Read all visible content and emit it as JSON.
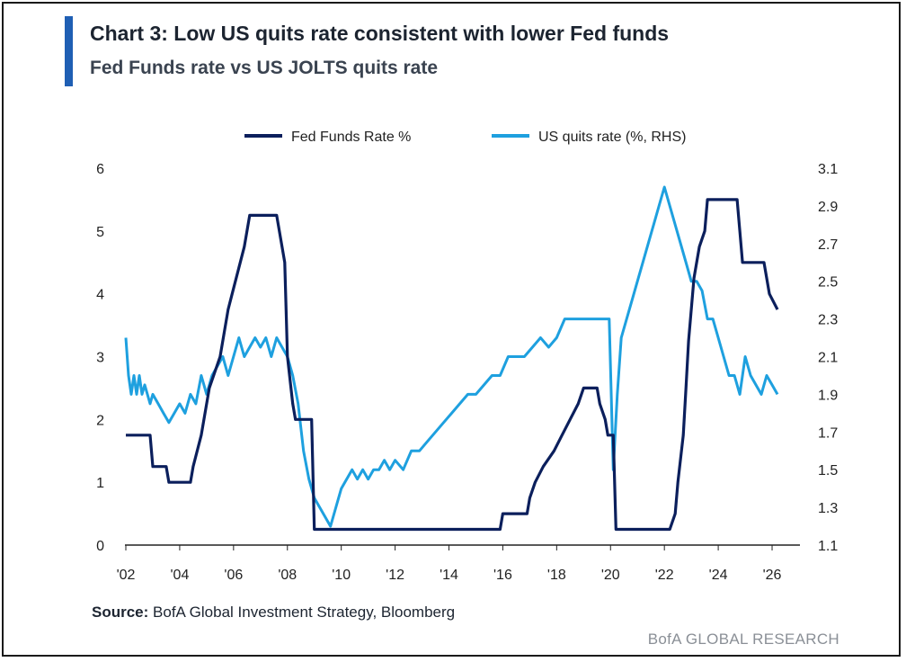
{
  "header": {
    "title": "Chart 3: Low US quits rate consistent with lower Fed funds",
    "subtitle": "Fed Funds rate vs US JOLTS quits rate"
  },
  "footer": {
    "source_label": "Source:",
    "source_text": " BofA Global Investment Strategy, Bloomberg",
    "watermark": "BofA GLOBAL RESEARCH"
  },
  "colors": {
    "fed": "#0b1f5c",
    "quits": "#1ea0df",
    "accent": "#1f5fb4",
    "axis": "#222222"
  },
  "chart_data": {
    "type": "line",
    "title": "",
    "xlabel": "",
    "ylabel": "",
    "x_ticks": [
      "'02",
      "'04",
      "'06",
      "'08",
      "'10",
      "'12",
      "'14",
      "'16",
      "'18",
      "'20",
      "'22",
      "'24",
      "'26"
    ],
    "x_tick_values": [
      2002,
      2004,
      2006,
      2008,
      2010,
      2012,
      2014,
      2016,
      2018,
      2020,
      2022,
      2024,
      2026
    ],
    "xlim": [
      2002,
      2026.5
    ],
    "ylim_left": [
      0,
      6
    ],
    "y_ticks_left": [
      "0",
      "1",
      "2",
      "3",
      "4",
      "5",
      "6"
    ],
    "ylim_right": [
      1.1,
      3.1
    ],
    "y_ticks_right": [
      "1.1",
      "1.3",
      "1.5",
      "1.7",
      "1.9",
      "2.1",
      "2.3",
      "2.5",
      "2.7",
      "2.9",
      "3.1"
    ],
    "legend": "top-center",
    "grid": false,
    "series": [
      {
        "name": "Fed Funds Rate %",
        "axis": "left",
        "x": [
          2002.0,
          2002.9,
          2003.0,
          2003.5,
          2003.6,
          2004.4,
          2004.5,
          2004.8,
          2005.1,
          2005.5,
          2005.8,
          2006.1,
          2006.4,
          2006.6,
          2007.6,
          2007.8,
          2007.9,
          2008.0,
          2008.2,
          2008.3,
          2008.9,
          2009.0,
          2015.9,
          2016.0,
          2016.9,
          2017.0,
          2017.2,
          2017.5,
          2017.9,
          2018.2,
          2018.5,
          2018.8,
          2019.0,
          2019.5,
          2019.6,
          2019.8,
          2019.9,
          2020.0,
          2020.1,
          2020.2,
          2022.2,
          2022.4,
          2022.5,
          2022.7,
          2022.8,
          2022.9,
          2023.0,
          2023.1,
          2023.3,
          2023.5,
          2023.6,
          2024.7,
          2024.8,
          2024.9,
          2025.7,
          2025.8,
          2025.9,
          2026.2
        ],
        "values": [
          1.75,
          1.75,
          1.25,
          1.25,
          1.0,
          1.0,
          1.25,
          1.75,
          2.5,
          3.0,
          3.75,
          4.25,
          4.75,
          5.25,
          5.25,
          4.75,
          4.5,
          3.0,
          2.25,
          2.0,
          2.0,
          0.25,
          0.25,
          0.5,
          0.5,
          0.75,
          1.0,
          1.25,
          1.5,
          1.75,
          2.0,
          2.25,
          2.5,
          2.5,
          2.25,
          2.0,
          1.75,
          1.75,
          1.75,
          0.25,
          0.25,
          0.5,
          1.0,
          1.75,
          2.5,
          3.25,
          3.75,
          4.25,
          4.75,
          5.0,
          5.5,
          5.5,
          5.0,
          4.5,
          4.5,
          4.25,
          4.0,
          3.75
        ]
      },
      {
        "name": "US quits rate (%, RHS)",
        "axis": "right",
        "x": [
          2002.0,
          2002.1,
          2002.2,
          2002.3,
          2002.4,
          2002.5,
          2002.6,
          2002.7,
          2002.8,
          2002.9,
          2003.0,
          2003.2,
          2003.4,
          2003.6,
          2003.8,
          2004.0,
          2004.2,
          2004.4,
          2004.6,
          2004.8,
          2005.0,
          2005.2,
          2005.4,
          2005.6,
          2005.8,
          2006.0,
          2006.2,
          2006.4,
          2006.6,
          2006.8,
          2007.0,
          2007.2,
          2007.4,
          2007.6,
          2007.8,
          2008.0,
          2008.2,
          2008.4,
          2008.6,
          2008.8,
          2009.0,
          2009.2,
          2009.4,
          2009.6,
          2009.8,
          2010.0,
          2010.2,
          2010.4,
          2010.6,
          2010.8,
          2011.0,
          2011.2,
          2011.4,
          2011.6,
          2011.8,
          2012.0,
          2012.3,
          2012.6,
          2012.9,
          2013.2,
          2013.5,
          2013.8,
          2014.1,
          2014.4,
          2014.7,
          2015.0,
          2015.3,
          2015.6,
          2015.9,
          2016.2,
          2016.5,
          2016.8,
          2017.1,
          2017.4,
          2017.7,
          2018.0,
          2018.3,
          2018.6,
          2018.9,
          2019.2,
          2019.5,
          2019.8,
          2019.95,
          2020.1,
          2020.25,
          2020.4,
          2020.6,
          2020.8,
          2021.0,
          2021.2,
          2021.4,
          2021.6,
          2021.8,
          2022.0,
          2022.2,
          2022.4,
          2022.6,
          2022.8,
          2023.0,
          2023.2,
          2023.4,
          2023.6,
          2023.8,
          2024.0,
          2024.2,
          2024.4,
          2024.6,
          2024.8,
          2025.0,
          2025.2,
          2025.4,
          2025.6,
          2025.8,
          2026.0,
          2026.2
        ],
        "values": [
          2.2,
          2.0,
          1.9,
          2.0,
          1.9,
          2.0,
          1.9,
          1.95,
          1.9,
          1.85,
          1.9,
          1.85,
          1.8,
          1.75,
          1.8,
          1.85,
          1.8,
          1.9,
          1.85,
          2.0,
          1.9,
          2.0,
          2.05,
          2.1,
          2.0,
          2.1,
          2.2,
          2.1,
          2.15,
          2.2,
          2.15,
          2.2,
          2.1,
          2.2,
          2.15,
          2.1,
          2.0,
          1.85,
          1.6,
          1.45,
          1.35,
          1.3,
          1.25,
          1.2,
          1.3,
          1.4,
          1.45,
          1.5,
          1.45,
          1.5,
          1.45,
          1.5,
          1.5,
          1.55,
          1.5,
          1.55,
          1.5,
          1.6,
          1.6,
          1.65,
          1.7,
          1.75,
          1.8,
          1.85,
          1.9,
          1.9,
          1.95,
          2.0,
          2.0,
          2.1,
          2.1,
          2.1,
          2.15,
          2.2,
          2.15,
          2.2,
          2.3,
          2.3,
          2.3,
          2.3,
          2.3,
          2.3,
          2.3,
          1.5,
          1.9,
          2.2,
          2.3,
          2.4,
          2.5,
          2.6,
          2.7,
          2.8,
          2.9,
          3.0,
          2.9,
          2.8,
          2.7,
          2.6,
          2.5,
          2.5,
          2.45,
          2.3,
          2.3,
          2.2,
          2.1,
          2.0,
          2.0,
          1.9,
          2.1,
          2.0,
          1.95,
          1.9,
          2.0,
          1.95,
          1.9
        ]
      }
    ]
  }
}
